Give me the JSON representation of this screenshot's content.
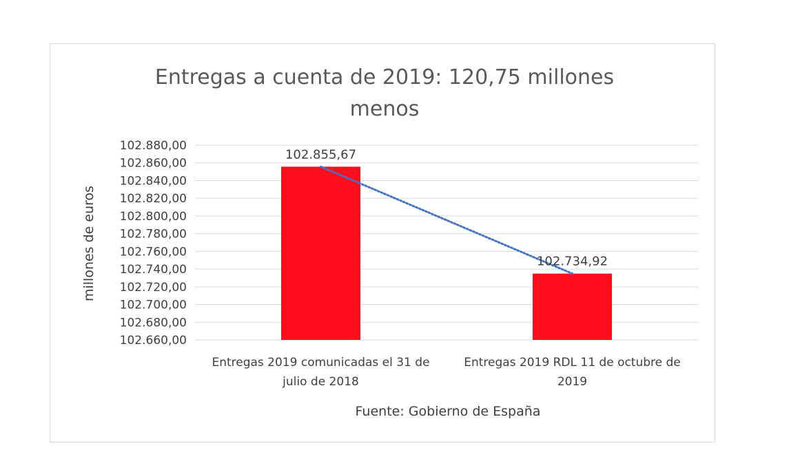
{
  "chart_data": {
    "type": "bar",
    "title_lines": [
      "Entregas a cuenta de 2019: 120,75 millones",
      "menos"
    ],
    "ylabel": "millones de euros",
    "xlabel": "Fuente: Gobierno de España",
    "ylim": [
      102660,
      102880
    ],
    "ytick_step": 20,
    "ytick_labels": [
      "102.660,00",
      "102.680,00",
      "102.700,00",
      "102.720,00",
      "102.740,00",
      "102.760,00",
      "102.780,00",
      "102.800,00",
      "102.820,00",
      "102.840,00",
      "102.860,00",
      "102.880,00"
    ],
    "categories": [
      [
        "Entregas 2019 comunicadas el 31 de",
        "julio de 2018"
      ],
      [
        "Entregas 2019 RDL 11 de octubre de",
        "2019"
      ]
    ],
    "values": [
      102855.67,
      102734.92
    ],
    "data_labels": [
      "102.855,67",
      "102.734,92"
    ],
    "bar_color": "#ff0f1e",
    "trendline": {
      "style": "dotted",
      "color": "#4472c4"
    },
    "grid": true,
    "legend": "none"
  }
}
